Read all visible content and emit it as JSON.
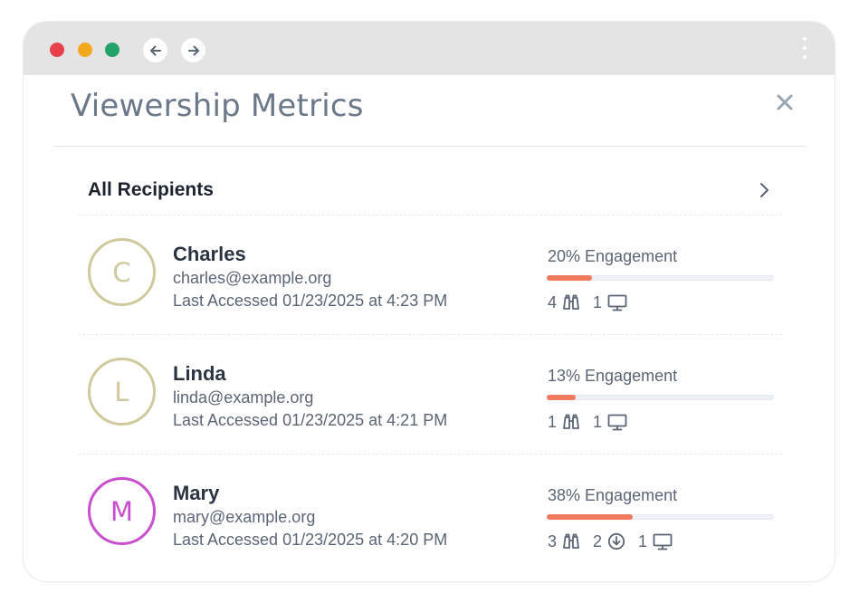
{
  "header": {
    "title": "Viewership Metrics"
  },
  "all_recipients": {
    "label": "All Recipients"
  },
  "recipients": [
    {
      "initial": "C",
      "name": "Charles",
      "email": "charles@example.org",
      "last_accessed": "Last Accessed 01/23/2025 at 4:23 PM",
      "engagement_label": "20% Engagement",
      "engagement_pct": 20,
      "views": "4",
      "downloads": null,
      "devices": "1",
      "avatar_color": "#cfc99d"
    },
    {
      "initial": "L",
      "name": "Linda",
      "email": "linda@example.org",
      "last_accessed": "Last Accessed 01/23/2025 at 4:21 PM",
      "engagement_label": "13% Engagement",
      "engagement_pct": 13,
      "views": "1",
      "downloads": null,
      "devices": "1",
      "avatar_color": "#cfc99d"
    },
    {
      "initial": "M",
      "name": "Mary",
      "email": "mary@example.org",
      "last_accessed": "Last Accessed 01/23/2025 at 4:20 PM",
      "engagement_label": "38% Engagement",
      "engagement_pct": 38,
      "views": "3",
      "downloads": "2",
      "devices": "1",
      "avatar_color": "#c94fcf"
    }
  ],
  "icons": {
    "views": "binoculars-icon",
    "downloads": "download-circle-icon",
    "devices": "monitor-icon",
    "close": "close-icon",
    "chevron": "chevron-right-icon"
  },
  "colors": {
    "accent": "#f07a5e",
    "title": "#6b7889",
    "traffic_red": "#e8414e",
    "traffic_yellow": "#f2a91e",
    "traffic_green": "#23a36a"
  }
}
